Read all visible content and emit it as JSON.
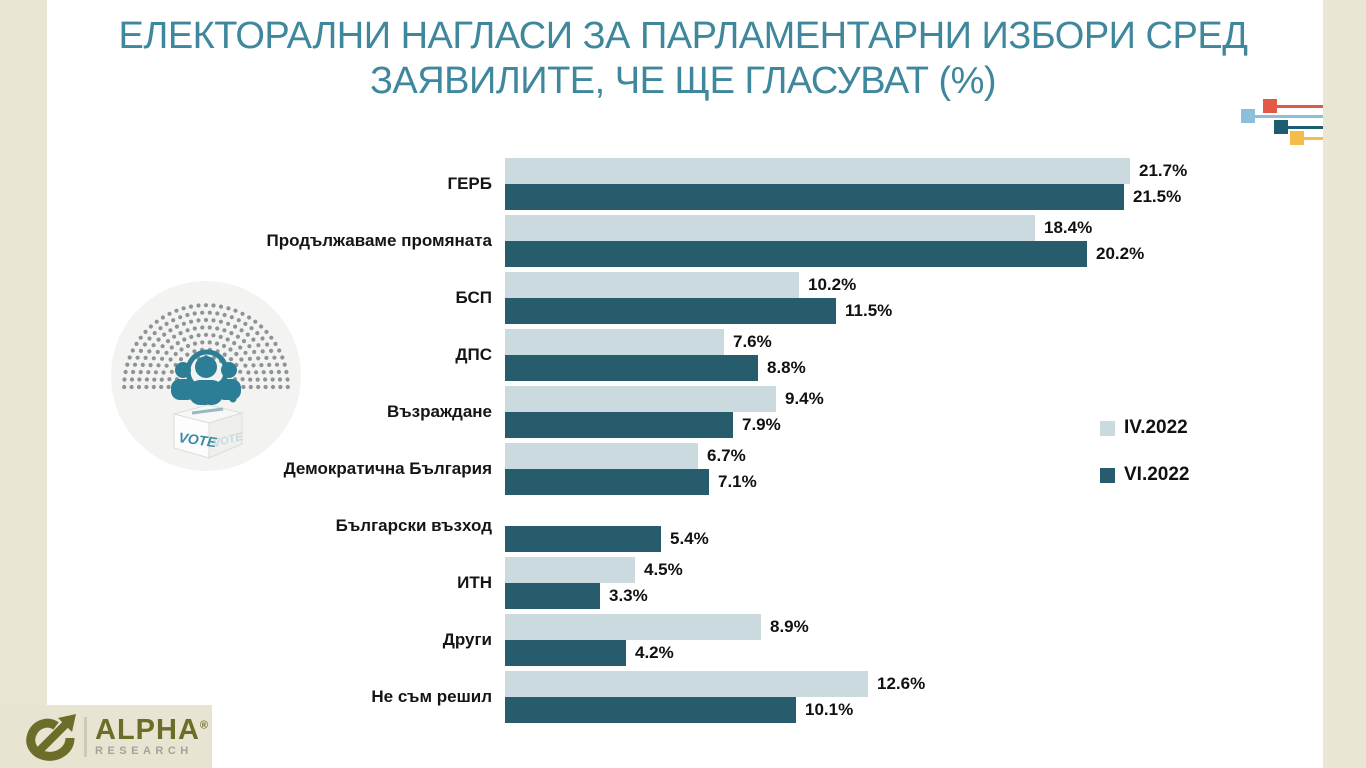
{
  "title": {
    "full": "ЕЛЕКТОРАЛНИ НАГЛАСИ ЗА ПАРЛАМЕНТАРНИ ИЗБОРИ СРЕД ЗАЯВИЛИТЕ, ЧЕ ЩЕ ГЛАСУВАТ (%)",
    "line1": "ЕЛЕКТОРАЛНИ НАГЛАСИ ЗА ПАРЛАМЕНТАРНИ ИЗБОРИ СРЕД",
    "line2": "ЗАЯВИЛИТЕ, ЧЕ ЩЕ ГЛАСУВАТ (%)"
  },
  "colors": {
    "title_teal": "#3e879c",
    "series_light": "#cbdade",
    "series_dark": "#265c6b",
    "beige": "#e9e6d5",
    "decor_red": "#e25a47",
    "decor_lightblue": "#8cc0da",
    "decor_darkteal": "#1d5c6e",
    "decor_yellow": "#f5bc4a",
    "seat_dot_gray": "#8e9396",
    "logo_olive": "#6d6d2a",
    "logo_gray": "#a3a39a"
  },
  "legend": {
    "items": [
      {
        "label": "IV.2022",
        "color": "#cbdade"
      },
      {
        "label": "VI.2022",
        "color": "#265c6b"
      }
    ]
  },
  "chart_data": {
    "type": "bar",
    "orientation": "horizontal",
    "title": "ЕЛЕКТОРАЛНИ НАГЛАСИ ЗА ПАРЛАМЕНТАРНИ ИЗБОРИ СРЕД ЗАЯВИЛИТЕ, ЧЕ ЩЕ ГЛАСУВАТ (%)",
    "categories": [
      "ГЕРБ",
      "Продължаваме промяната",
      "БСП",
      "ДПС",
      "Възраждане",
      "Демократична България",
      "Български възход",
      "ИТН",
      "Други",
      "Не съм решил"
    ],
    "series": [
      {
        "name": "IV.2022",
        "color": "#cbdade",
        "values": [
          21.7,
          18.4,
          10.2,
          7.6,
          9.4,
          6.7,
          null,
          4.5,
          8.9,
          12.6
        ]
      },
      {
        "name": "VI.2022",
        "color": "#265c6b",
        "values": [
          21.5,
          20.2,
          11.5,
          8.8,
          7.9,
          7.1,
          5.4,
          3.3,
          4.2,
          10.1
        ]
      }
    ],
    "value_suffix": "%",
    "xlim": [
      0,
      22
    ],
    "grid": false,
    "legend_position": "right",
    "value_labels": "outside-end"
  },
  "icons": {
    "vote_label": "VOTE",
    "vote_circle_icon": "parliament-seats-with-voters-and-ballot-box",
    "decor_icon": "colored-squares-with-connector-lines"
  },
  "logo": {
    "title": "ALPHA",
    "reg": "®",
    "subtitle": "RESEARCH"
  }
}
